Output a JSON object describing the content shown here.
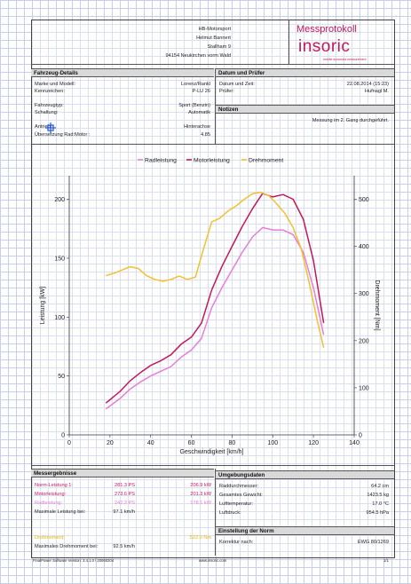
{
  "company": {
    "line1": "HB-Motorsport",
    "line2": "Helmut Bannert",
    "line3": "Stallham 9",
    "line4": "94154 Neukirchen vorm Wald"
  },
  "logo": {
    "title": "Messprotokoll",
    "brand": "insoric",
    "tagline": "mobile dynamics measurement"
  },
  "sections": {
    "vehicle": "Fahrzeug-Details",
    "date": "Datum und Prüfer",
    "notes": "Notizen",
    "results": "Messergebnisse",
    "conditions": "Umgebungsdaten",
    "norm": "Einstellung der Norm"
  },
  "vehicle": {
    "make_label": "Marke und Modell:",
    "make_value": "Lorenz/Rankl",
    "plate_label": "Kennzeichen:",
    "plate_value": "P-LU 26",
    "type_label": "Fahrzeugtyp:",
    "type_value": "Sport (Benzin)",
    "gear_label": "Schaltung:",
    "gear_value": "Automatik",
    "drive_label": "Antrieb:",
    "drive_value": "Hinterachse",
    "ratio_label": "Übersetzung Rad:Motor :",
    "ratio_value": "4.85"
  },
  "date": {
    "date_label": "Datum und Zeit:",
    "date_value": "22.08.2014 (15:23)",
    "tester_label": "Prüfer:",
    "tester_value": "Hufnagl M."
  },
  "notes": {
    "text": "Messung im 2. Gang durchgeführt."
  },
  "legend": {
    "wheel": "Radleistung",
    "engine": "Motorleistung",
    "torque": "Drehmoment"
  },
  "colors": {
    "wheel": "#e87dd8",
    "engine": "#c2185b",
    "torque": "#f2c12e"
  },
  "chart_data": {
    "type": "line",
    "xlabel": "Geschwindigkeit [km/h]",
    "ylabel": "Leistung [kW]",
    "y2label": "Drehmoment [Nm]",
    "xlim": [
      0,
      140
    ],
    "ylim": [
      0,
      220
    ],
    "y2lim": [
      0,
      550
    ],
    "xticks": [
      "0",
      "20",
      "40",
      "60",
      "80",
      "100",
      "120",
      "140"
    ],
    "yticks": [
      "0",
      "50",
      "100",
      "150",
      "200"
    ],
    "y2ticks": [
      "0",
      "100",
      "200",
      "300",
      "400",
      "500"
    ],
    "grid": false,
    "legend_position": "top",
    "series": [
      {
        "name": "Radleistung",
        "axis": "left",
        "x": [
          18,
          25,
          30,
          35,
          40,
          45,
          50,
          55,
          60,
          65,
          70,
          75,
          80,
          85,
          90,
          95,
          100,
          105,
          110,
          115,
          120,
          125
        ],
        "y": [
          22,
          31,
          39,
          45,
          50,
          54,
          58,
          66,
          72,
          82,
          108,
          125,
          140,
          155,
          168,
          176,
          174,
          174,
          170,
          155,
          125,
          85
        ]
      },
      {
        "name": "Motorleistung",
        "axis": "left",
        "x": [
          18,
          25,
          30,
          35,
          40,
          45,
          50,
          55,
          60,
          65,
          70,
          75,
          80,
          85,
          90,
          95,
          100,
          105,
          110,
          115,
          120,
          125
        ],
        "y": [
          27,
          37,
          46,
          53,
          59,
          63,
          68,
          77,
          83,
          95,
          123,
          143,
          160,
          177,
          192,
          205,
          202,
          204,
          200,
          183,
          148,
          95
        ]
      },
      {
        "name": "Drehmoment",
        "axis": "right",
        "x": [
          18,
          22,
          26,
          30,
          34,
          38,
          42,
          46,
          50,
          54,
          58,
          62,
          66,
          70,
          74,
          78,
          82,
          86,
          90,
          94,
          98,
          102,
          106,
          110,
          114,
          118,
          122,
          125
        ],
        "y": [
          338,
          343,
          350,
          357,
          353,
          338,
          330,
          326,
          330,
          337,
          330,
          335,
          395,
          452,
          460,
          475,
          486,
          500,
          512,
          515,
          508,
          490,
          470,
          440,
          395,
          320,
          240,
          185
        ]
      }
    ]
  },
  "results": {
    "norm_label": "Norm-Leistung 1:",
    "norm_ps": "281.3 PS",
    "norm_kw": "206.9 kW",
    "engine_label": "Motorleistung:",
    "engine_ps": "273.6 PS",
    "engine_kw": "201.3 kW",
    "wheel_label": "Radleistung:",
    "wheel_ps": "242.2 PS",
    "wheel_kw": "178.1 kW",
    "max_label": "Maximale Leistung bei:",
    "max_value": "97.1 km/h",
    "torque_label": "Drehmoment:",
    "torque_value": "522.0 Nm",
    "max_torque_label": "Maximales Drehmoment bei:",
    "max_torque_value": "92.5 km/h"
  },
  "conditions": {
    "wheel_label": "Raddurchmesser:",
    "wheel_value": "64.2 cm",
    "weight_label": "Gesamtes Gewicht:",
    "weight_value": "1423.5 kg",
    "temp_label": "Lufttemperatur:",
    "temp_value": "17.0 °C",
    "press_label": "Luftdruck:",
    "press_value": "954.5 hPa"
  },
  "norm": {
    "label": "Korrektur nach:",
    "value": "EWG 80/1269"
  },
  "footer": {
    "left": "FinalPower Software Version: 3.4.1.0 / 20060204",
    "center": "www.insoric.com",
    "right": "1/1"
  }
}
